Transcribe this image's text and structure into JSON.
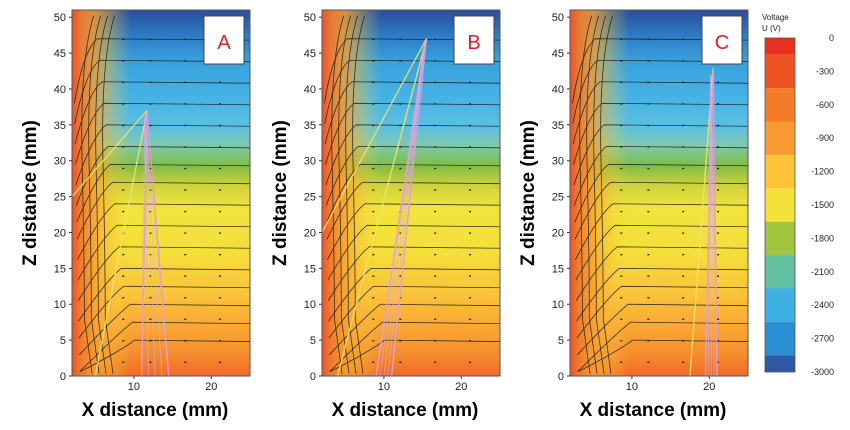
{
  "chart_data": [
    {
      "type": "heatmap",
      "panel_label": "A",
      "xlabel": "X distance (mm)",
      "ylabel": "Z distance (mm)",
      "x_ticks": [
        10,
        20
      ],
      "y_ticks": [
        0,
        5,
        10,
        15,
        20,
        25,
        30,
        35,
        40,
        45,
        50
      ],
      "xlim": [
        2,
        25
      ],
      "ylim": [
        0,
        51
      ],
      "trajectory_fan": [
        {
          "apex": [
            11.7,
            37
          ],
          "ends_at_z0": [
            5,
            11,
            14.5
          ]
        },
        {
          "origin": [
            2,
            25
          ],
          "to": [
            11.7,
            37
          ]
        }
      ]
    },
    {
      "type": "heatmap",
      "panel_label": "B",
      "xlabel": "X distance (mm)",
      "ylabel": "Z distance (mm)",
      "x_ticks": [
        10,
        20
      ],
      "y_ticks": [
        0,
        5,
        10,
        15,
        20,
        25,
        30,
        35,
        40,
        45,
        50
      ],
      "xlim": [
        2,
        25
      ],
      "ylim": [
        0,
        51
      ],
      "trajectory_fan": [
        {
          "apex": [
            15.5,
            47
          ],
          "ends_at_z0": [
            4,
            9,
            11
          ]
        },
        {
          "origin": [
            2,
            20
          ],
          "to": [
            15.5,
            47
          ]
        }
      ]
    },
    {
      "type": "heatmap",
      "panel_label": "C",
      "xlabel": "X distance (mm)",
      "ylabel": "Z distance (mm)",
      "x_ticks": [
        10,
        20
      ],
      "y_ticks": [
        0,
        5,
        10,
        15,
        20,
        25,
        30,
        35,
        40,
        45,
        50
      ],
      "xlim": [
        2,
        25
      ],
      "ylim": [
        0,
        51
      ],
      "trajectory_fan": [
        {
          "apex": [
            20.5,
            43
          ],
          "ends_at_z0": [
            17.5,
            19.5,
            21
          ]
        }
      ]
    }
  ],
  "colorbar": {
    "title_line1": "Voltage",
    "title_line2": "U (V)",
    "tick_labels": [
      "0",
      "-300",
      "-600",
      "-900",
      "-1200",
      "-1500",
      "-1800",
      "-2100",
      "-2400",
      "-2700",
      "-3000"
    ],
    "levels": [
      {
        "from": 0,
        "color": "#e8301f"
      },
      {
        "from": -150,
        "color": "#ee5423"
      },
      {
        "from": -450,
        "color": "#f47b2a"
      },
      {
        "from": -750,
        "color": "#f89b32"
      },
      {
        "from": -1050,
        "color": "#fbc23a"
      },
      {
        "from": -1350,
        "color": "#f4e23a"
      },
      {
        "from": -1650,
        "color": "#a2c53f"
      },
      {
        "from": -1950,
        "color": "#62bfa0"
      },
      {
        "from": -2250,
        "color": "#3fb0e4"
      },
      {
        "from": -2550,
        "color": "#2c8fd3"
      },
      {
        "from": -2850,
        "color": "#2f58a5"
      }
    ]
  }
}
